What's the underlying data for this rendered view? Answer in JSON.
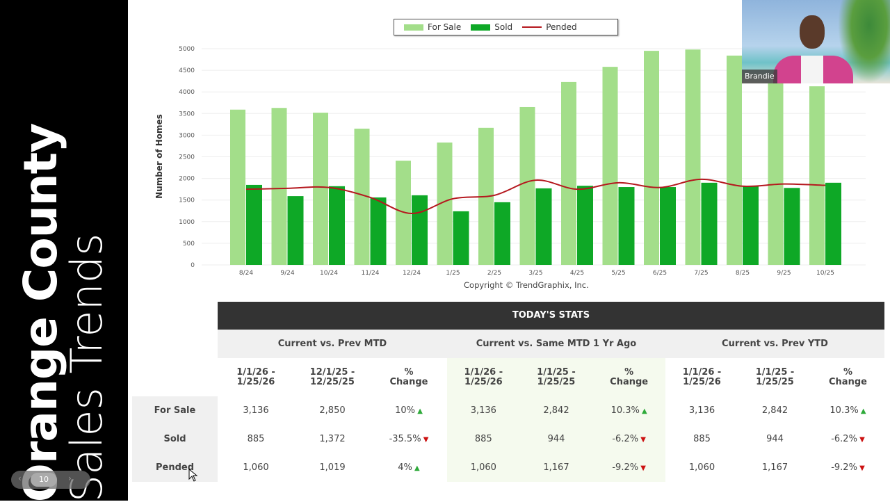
{
  "sidebar": {
    "title_line1": "Orange County",
    "title_line2": "Sales Trends",
    "page_number": "10"
  },
  "chart_data": {
    "type": "bar",
    "categories": [
      "8/24",
      "9/24",
      "10/24",
      "11/24",
      "12/24",
      "1/25",
      "2/25",
      "3/25",
      "4/25",
      "5/25",
      "6/25",
      "7/25",
      "8/25",
      "9/25",
      "10/25"
    ],
    "series": [
      {
        "name": "For Sale",
        "type": "bar",
        "color": "#a3de8a",
        "values": [
          3590,
          3630,
          3520,
          3150,
          2410,
          2830,
          3170,
          3650,
          4230,
          4580,
          4950,
          4980,
          4840,
          4200,
          4130
        ]
      },
      {
        "name": "Sold",
        "type": "bar",
        "color": "#0ea826",
        "values": [
          1850,
          1590,
          1820,
          1560,
          1610,
          1240,
          1450,
          1770,
          1830,
          1800,
          1800,
          1900,
          1830,
          1780,
          1900
        ]
      },
      {
        "name": "Pended",
        "type": "line",
        "color": "#b5181e",
        "values": [
          1750,
          1770,
          1790,
          1560,
          1190,
          1530,
          1610,
          1960,
          1750,
          1900,
          1790,
          1980,
          1820,
          1870,
          1840
        ]
      }
    ],
    "ylabel": "Number of Homes",
    "ylim": [
      0,
      5000
    ],
    "yticks": [
      "0",
      "500",
      "1000",
      "1500",
      "2000",
      "2500",
      "3000",
      "3500",
      "4000",
      "4500",
      "5000"
    ],
    "grid": true,
    "legend": "top-center",
    "footer": "Copyright © TrendGraphix, Inc."
  },
  "stats": {
    "title": "TODAY'S STATS",
    "groups": [
      {
        "label": "Current vs. Prev MTD",
        "cols": [
          "1/1/26 -\n1/25/26",
          "12/1/25 -\n12/25/25",
          "%\nChange"
        ]
      },
      {
        "label": "Current vs. Same MTD 1 Yr Ago",
        "cols": [
          "1/1/26 -\n1/25/26",
          "1/1/25 -\n1/25/25",
          "%\nChange"
        ]
      },
      {
        "label": "Current vs. Prev YTD",
        "cols": [
          "1/1/26 -\n1/25/26",
          "1/1/25 -\n1/25/25",
          "%\nChange"
        ]
      }
    ],
    "rows": [
      {
        "label": "For Sale",
        "values": [
          "3,136",
          "2,850",
          "10%",
          "3,136",
          "2,842",
          "10.3%",
          "3,136",
          "2,842",
          "10.3%"
        ],
        "trend": [
          "up",
          "up",
          "up"
        ]
      },
      {
        "label": "Sold",
        "values": [
          "885",
          "1,372",
          "-35.5%",
          "885",
          "944",
          "-6.2%",
          "885",
          "944",
          "-6.2%"
        ],
        "trend": [
          "down",
          "down",
          "down"
        ]
      },
      {
        "label": "Pended",
        "values": [
          "1,060",
          "1,019",
          "4%",
          "1,060",
          "1,167",
          "-9.2%",
          "1,060",
          "1,167",
          "-9.2%"
        ],
        "trend": [
          "up",
          "down",
          "down"
        ]
      }
    ]
  },
  "video": {
    "participant_name": "Brandie"
  }
}
